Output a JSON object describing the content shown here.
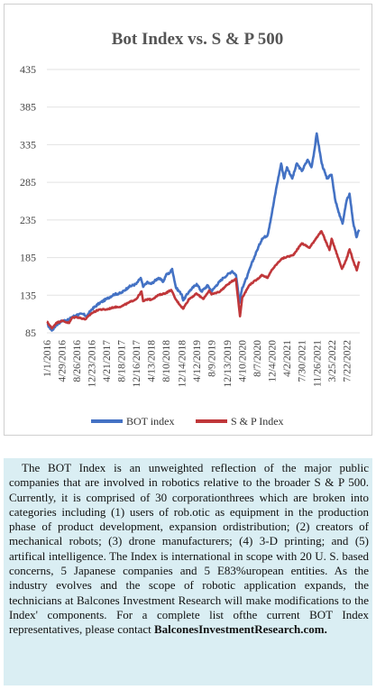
{
  "colors": {
    "bot": "#4472c4",
    "sp": "#c0373a",
    "caption_bg": "#daeef3"
  },
  "chart_data": {
    "type": "line",
    "title": "Bot Index vs. S & P 500",
    "xlabel": "",
    "ylabel": "",
    "ylim": [
      85,
      435
    ],
    "yticks": [
      "85",
      "135",
      "185",
      "235",
      "285",
      "335",
      "385",
      "435"
    ],
    "xticks": [
      "1/1/2016",
      "4/29/2016",
      "8/26/2016",
      "12/23/2016",
      "4/21/2017",
      "8/18/2017",
      "12/16/2017",
      "4/13/2018",
      "8/10/2018",
      "12/14/2018",
      "4/12/2019",
      "8/9/2019",
      "12/13/2019",
      "4/10/2020",
      "8/7/2020",
      "12/4/2020",
      "4/2/2021",
      "7/30/2021",
      "11/26/2021",
      "3/25/2022",
      "7/22/2022"
    ],
    "grid": true,
    "legend_position": "bottom",
    "series": [
      {
        "name": "BOT index",
        "points": [
          [
            "2016-01-01",
            97
          ],
          [
            "2016-02-10",
            88
          ],
          [
            "2016-03-15",
            95
          ],
          [
            "2016-04-29",
            101
          ],
          [
            "2016-06-20",
            102
          ],
          [
            "2016-07-20",
            106
          ],
          [
            "2016-08-26",
            109
          ],
          [
            "2016-10-15",
            110
          ],
          [
            "2016-11-15",
            107
          ],
          [
            "2016-12-23",
            116
          ],
          [
            "2017-02-20",
            124
          ],
          [
            "2017-04-21",
            130
          ],
          [
            "2017-06-20",
            136
          ],
          [
            "2017-08-18",
            138
          ],
          [
            "2017-10-15",
            146
          ],
          [
            "2017-12-16",
            150
          ],
          [
            "2018-01-20",
            158
          ],
          [
            "2018-02-08",
            146
          ],
          [
            "2018-03-10",
            152
          ],
          [
            "2018-04-13",
            150
          ],
          [
            "2018-06-10",
            158
          ],
          [
            "2018-07-20",
            153
          ],
          [
            "2018-08-10",
            162
          ],
          [
            "2018-09-10",
            165
          ],
          [
            "2018-09-28",
            170
          ],
          [
            "2018-10-28",
            145
          ],
          [
            "2018-12-14",
            136
          ],
          [
            "2018-12-25",
            128
          ],
          [
            "2019-02-10",
            140
          ],
          [
            "2019-04-12",
            150
          ],
          [
            "2019-05-20",
            140
          ],
          [
            "2019-07-10",
            148
          ],
          [
            "2019-08-09",
            140
          ],
          [
            "2019-09-15",
            148
          ],
          [
            "2019-11-10",
            158
          ],
          [
            "2019-12-13",
            162
          ],
          [
            "2020-01-20",
            167
          ],
          [
            "2020-02-20",
            162
          ],
          [
            "2020-03-20",
            125
          ],
          [
            "2020-04-10",
            145
          ],
          [
            "2020-05-20",
            160
          ],
          [
            "2020-06-20",
            175
          ],
          [
            "2020-08-07",
            195
          ],
          [
            "2020-09-15",
            210
          ],
          [
            "2020-10-30",
            215
          ],
          [
            "2020-12-04",
            245
          ],
          [
            "2021-01-10",
            280
          ],
          [
            "2021-02-15",
            310
          ],
          [
            "2021-03-10",
            290
          ],
          [
            "2021-04-02",
            305
          ],
          [
            "2021-05-15",
            290
          ],
          [
            "2021-06-20",
            310
          ],
          [
            "2021-07-30",
            300
          ],
          [
            "2021-09-15",
            315
          ],
          [
            "2021-10-15",
            305
          ],
          [
            "2021-11-10",
            330
          ],
          [
            "2021-11-26",
            350
          ],
          [
            "2022-01-05",
            310
          ],
          [
            "2022-02-15",
            290
          ],
          [
            "2022-03-25",
            295
          ],
          [
            "2022-04-25",
            260
          ],
          [
            "2022-05-20",
            245
          ],
          [
            "2022-06-20",
            230
          ],
          [
            "2022-07-22",
            260
          ],
          [
            "2022-08-15",
            270
          ],
          [
            "2022-09-15",
            230
          ],
          [
            "2022-10-10",
            212
          ],
          [
            "2022-10-31",
            222
          ]
        ]
      },
      {
        "name": "S & P Index",
        "points": [
          [
            "2016-01-01",
            100
          ],
          [
            "2016-02-10",
            91
          ],
          [
            "2016-03-15",
            98
          ],
          [
            "2016-04-29",
            101
          ],
          [
            "2016-06-27",
            98
          ],
          [
            "2016-07-20",
            105
          ],
          [
            "2016-08-26",
            106
          ],
          [
            "2016-11-04",
            103
          ],
          [
            "2016-12-23",
            111
          ],
          [
            "2017-02-20",
            116
          ],
          [
            "2017-04-21",
            116
          ],
          [
            "2017-06-20",
            119
          ],
          [
            "2017-08-18",
            120
          ],
          [
            "2017-10-15",
            125
          ],
          [
            "2017-12-16",
            130
          ],
          [
            "2018-01-26",
            140
          ],
          [
            "2018-02-08",
            127
          ],
          [
            "2018-03-20",
            130
          ],
          [
            "2018-04-13",
            129
          ],
          [
            "2018-06-10",
            135
          ],
          [
            "2018-08-10",
            138
          ],
          [
            "2018-09-20",
            142
          ],
          [
            "2018-10-28",
            129
          ],
          [
            "2018-12-24",
            117
          ],
          [
            "2019-02-10",
            130
          ],
          [
            "2019-04-12",
            137
          ],
          [
            "2019-06-03",
            130
          ],
          [
            "2019-07-20",
            141
          ],
          [
            "2019-08-09",
            136
          ],
          [
            "2019-10-15",
            140
          ],
          [
            "2019-12-13",
            149
          ],
          [
            "2020-02-19",
            157
          ],
          [
            "2020-03-23",
            107
          ],
          [
            "2020-04-10",
            132
          ],
          [
            "2020-06-08",
            149
          ],
          [
            "2020-08-07",
            156
          ],
          [
            "2020-09-15",
            162
          ],
          [
            "2020-10-30",
            158
          ],
          [
            "2020-12-04",
            169
          ],
          [
            "2021-02-15",
            183
          ],
          [
            "2021-04-02",
            186
          ],
          [
            "2021-05-20",
            188
          ],
          [
            "2021-07-30",
            204
          ],
          [
            "2021-09-30",
            198
          ],
          [
            "2021-11-26",
            212
          ],
          [
            "2022-01-03",
            220
          ],
          [
            "2022-03-08",
            195
          ],
          [
            "2022-03-25",
            210
          ],
          [
            "2022-04-25",
            195
          ],
          [
            "2022-06-16",
            170
          ],
          [
            "2022-07-22",
            183
          ],
          [
            "2022-08-16",
            196
          ],
          [
            "2022-09-15",
            180
          ],
          [
            "2022-10-12",
            168
          ],
          [
            "2022-10-31",
            180
          ]
        ]
      }
    ]
  },
  "caption": {
    "body": "The BOT Index is an unweighted reflection of the major public companies that are involved in robotics relative to the broader S & P 500. Currently, it is comprised of 30 corporationthrees which are broken into categories including (1) users of rob.otic as equipment in the production phase of product development, expansion ordistribution; (2) creators of mechanical robots; (3) drone manufacturers; (4) 3-D printing; and (5) artifical intelligence. The Index is international in scope with 20 U. S. based concerns, 5 Japanese companies and 5 E83%uropean entities. As the industry evolves and the scope of robotic application expands, the technicians at Balcones Investment Research will make modifications to the Index' components. For a  complete list ofthe current BOT Index representatives, please contact ",
    "site": "BalconesInvestmentResearch.com."
  }
}
